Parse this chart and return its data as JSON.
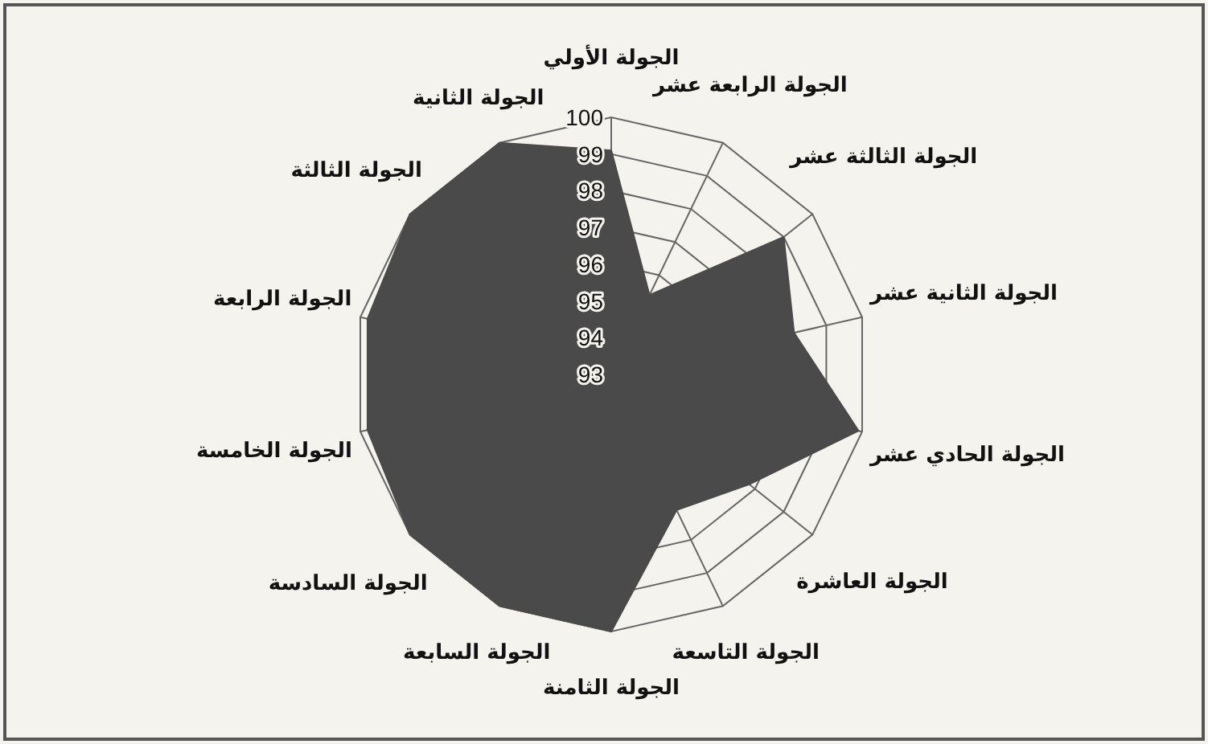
{
  "chart_data": {
    "type": "radar",
    "categories": [
      "الجولة الأولي",
      "الجولة الرابعة عشر",
      "الجولة الثالثة عشر",
      "الجولة الثانية عشر",
      "الجولة الحادي عشر",
      "الجولة  العاشرة",
      "الجولة  التاسعة",
      "الجولة الثامنة",
      "الجولة السابعة",
      "الجولة السادسة",
      "الجولة الخامسة",
      "الجولة الرابعة",
      "الجولة الثالثة",
      "الجولة الثانية"
    ],
    "series": [
      {
        "color": "#4a4a4a",
        "values": [
          99.1,
          95.4,
          99,
          98.1,
          99.9,
          97.8,
          97.1,
          100,
          100,
          100,
          99.8,
          99.8,
          100,
          100
        ]
      }
    ],
    "ylim": [
      93,
      100
    ],
    "yticks": [
      93,
      94,
      95,
      96,
      97,
      98,
      99,
      100
    ],
    "grid": true
  }
}
